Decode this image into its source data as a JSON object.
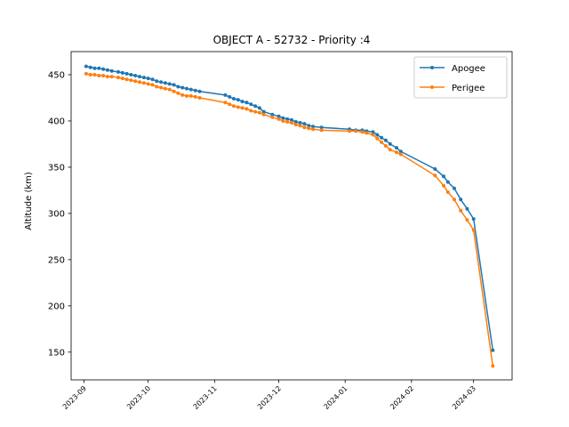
{
  "chart_data": {
    "type": "line",
    "title": "OBJECT A - 52732 - Priority :4",
    "xlabel": "",
    "ylabel": "Altitude (km)",
    "x_axis_type": "date",
    "xlim": [
      "2023-08-26",
      "2024-03-19"
    ],
    "ylim": [
      120,
      475
    ],
    "x_ticks": [
      "2023-09",
      "2023-10",
      "2023-11",
      "2023-12",
      "2024-01",
      "2024-02",
      "2024-03"
    ],
    "y_ticks": [
      150,
      200,
      250,
      300,
      350,
      400,
      450
    ],
    "grid": false,
    "legend_position": "top-right",
    "x": [
      "2023-09-02",
      "2023-09-04",
      "2023-09-06",
      "2023-09-08",
      "2023-09-10",
      "2023-09-12",
      "2023-09-14",
      "2023-09-17",
      "2023-09-19",
      "2023-09-21",
      "2023-09-23",
      "2023-09-25",
      "2023-09-27",
      "2023-09-29",
      "2023-10-01",
      "2023-10-03",
      "2023-10-05",
      "2023-10-07",
      "2023-10-09",
      "2023-10-11",
      "2023-10-13",
      "2023-10-15",
      "2023-10-17",
      "2023-10-19",
      "2023-10-21",
      "2023-10-23",
      "2023-10-25",
      "2023-11-06",
      "2023-11-08",
      "2023-11-10",
      "2023-11-12",
      "2023-11-14",
      "2023-11-16",
      "2023-11-18",
      "2023-11-20",
      "2023-11-22",
      "2023-11-24",
      "2023-11-28",
      "2023-12-01",
      "2023-12-03",
      "2023-12-05",
      "2023-12-07",
      "2023-12-09",
      "2023-12-11",
      "2023-12-13",
      "2023-12-15",
      "2023-12-17",
      "2023-12-21",
      "2024-01-03",
      "2024-01-06",
      "2024-01-09",
      "2024-01-11",
      "2024-01-14",
      "2024-01-16",
      "2024-01-18",
      "2024-01-20",
      "2024-01-22",
      "2024-01-25",
      "2024-01-27",
      "2024-02-12",
      "2024-02-16",
      "2024-02-18",
      "2024-02-21",
      "2024-02-24",
      "2024-02-27",
      "2024-03-01",
      "2024-03-10"
    ],
    "series": [
      {
        "name": "Apogee",
        "color": "#1f77b4",
        "values": [
          459,
          458,
          457,
          457,
          456,
          455,
          454,
          453,
          452,
          451,
          450,
          449,
          448,
          447,
          446,
          445,
          443,
          442,
          441,
          440,
          439,
          437,
          436,
          435,
          434,
          433,
          432,
          428,
          426,
          424,
          423,
          421,
          420,
          418,
          416,
          414,
          410,
          407,
          405,
          403,
          402,
          401,
          399,
          398,
          397,
          395,
          394,
          393,
          391,
          390,
          390,
          389,
          388,
          385,
          382,
          379,
          375,
          371,
          367,
          348,
          340,
          334,
          327,
          315,
          305,
          294,
          152
        ]
      },
      {
        "name": "Perigee",
        "color": "#ff7f0e",
        "values": [
          451,
          450,
          450,
          449,
          449,
          448,
          448,
          447,
          446,
          445,
          444,
          443,
          442,
          441,
          440,
          439,
          437,
          436,
          435,
          434,
          432,
          430,
          428,
          427,
          427,
          426,
          425,
          420,
          418,
          416,
          415,
          414,
          413,
          411,
          410,
          409,
          407,
          404,
          402,
          400,
          399,
          398,
          396,
          395,
          393,
          392,
          391,
          390,
          389,
          389,
          388,
          387,
          385,
          381,
          377,
          373,
          369,
          366,
          364,
          341,
          330,
          323,
          315,
          303,
          293,
          282,
          135
        ]
      }
    ]
  }
}
